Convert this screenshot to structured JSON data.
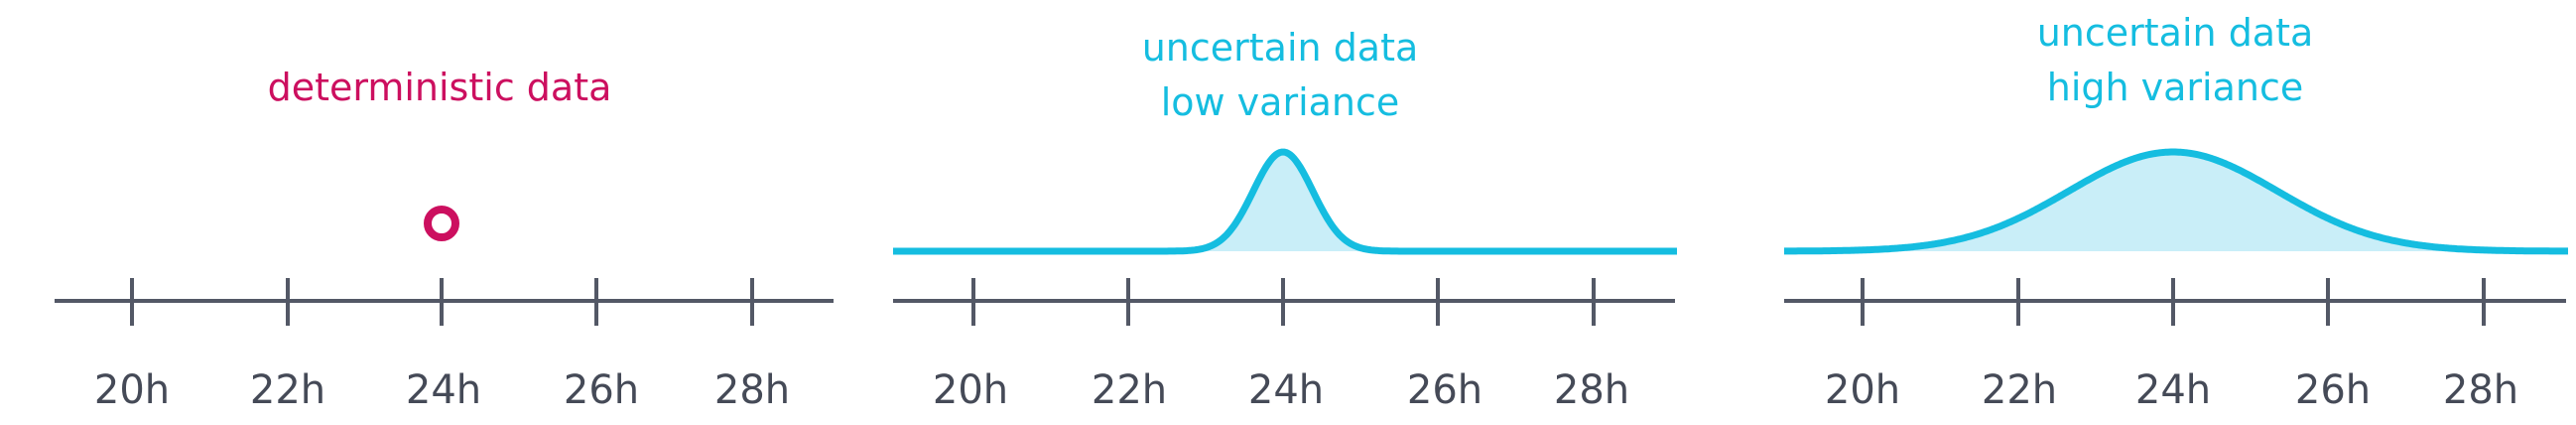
{
  "colors": {
    "deterministic": "#cc0f5f",
    "uncertain": "#15bde0",
    "uncertain_fill": "#c9eef8",
    "axis": "#535866",
    "tick_text": "#454a57"
  },
  "tick_labels": [
    "20h",
    "22h",
    "24h",
    "26h",
    "28h"
  ],
  "panels": [
    {
      "title_lines": [
        "deterministic data"
      ],
      "kind": "point",
      "value": 24
    },
    {
      "title_lines": [
        "uncertain data",
        "low variance"
      ],
      "kind": "distribution",
      "mean": 24,
      "variance": "low"
    },
    {
      "title_lines": [
        "uncertain data",
        "high variance"
      ],
      "kind": "distribution",
      "mean": 24,
      "variance": "high"
    }
  ]
}
